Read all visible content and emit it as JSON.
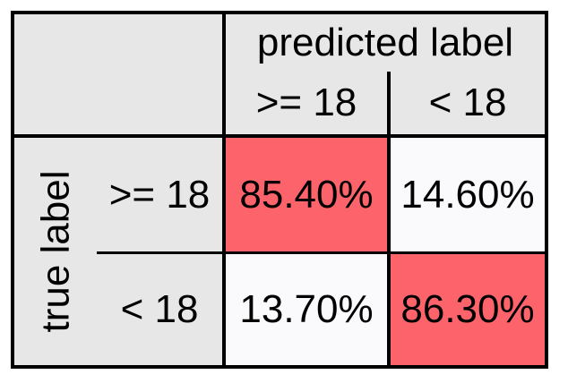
{
  "chart_data": {
    "type": "table",
    "title": "",
    "column_header": "predicted label",
    "row_header": "true label",
    "columns": [
      ">= 18",
      "< 18"
    ],
    "rows": [
      ">= 18",
      "< 18"
    ],
    "values": [
      [
        "85.40%",
        "14.60%"
      ],
      [
        "13.70%",
        "86.30%"
      ]
    ],
    "highlight_color": "#fc636b",
    "plain_color": "#fafafd",
    "header_color": "#e7e7e7"
  }
}
